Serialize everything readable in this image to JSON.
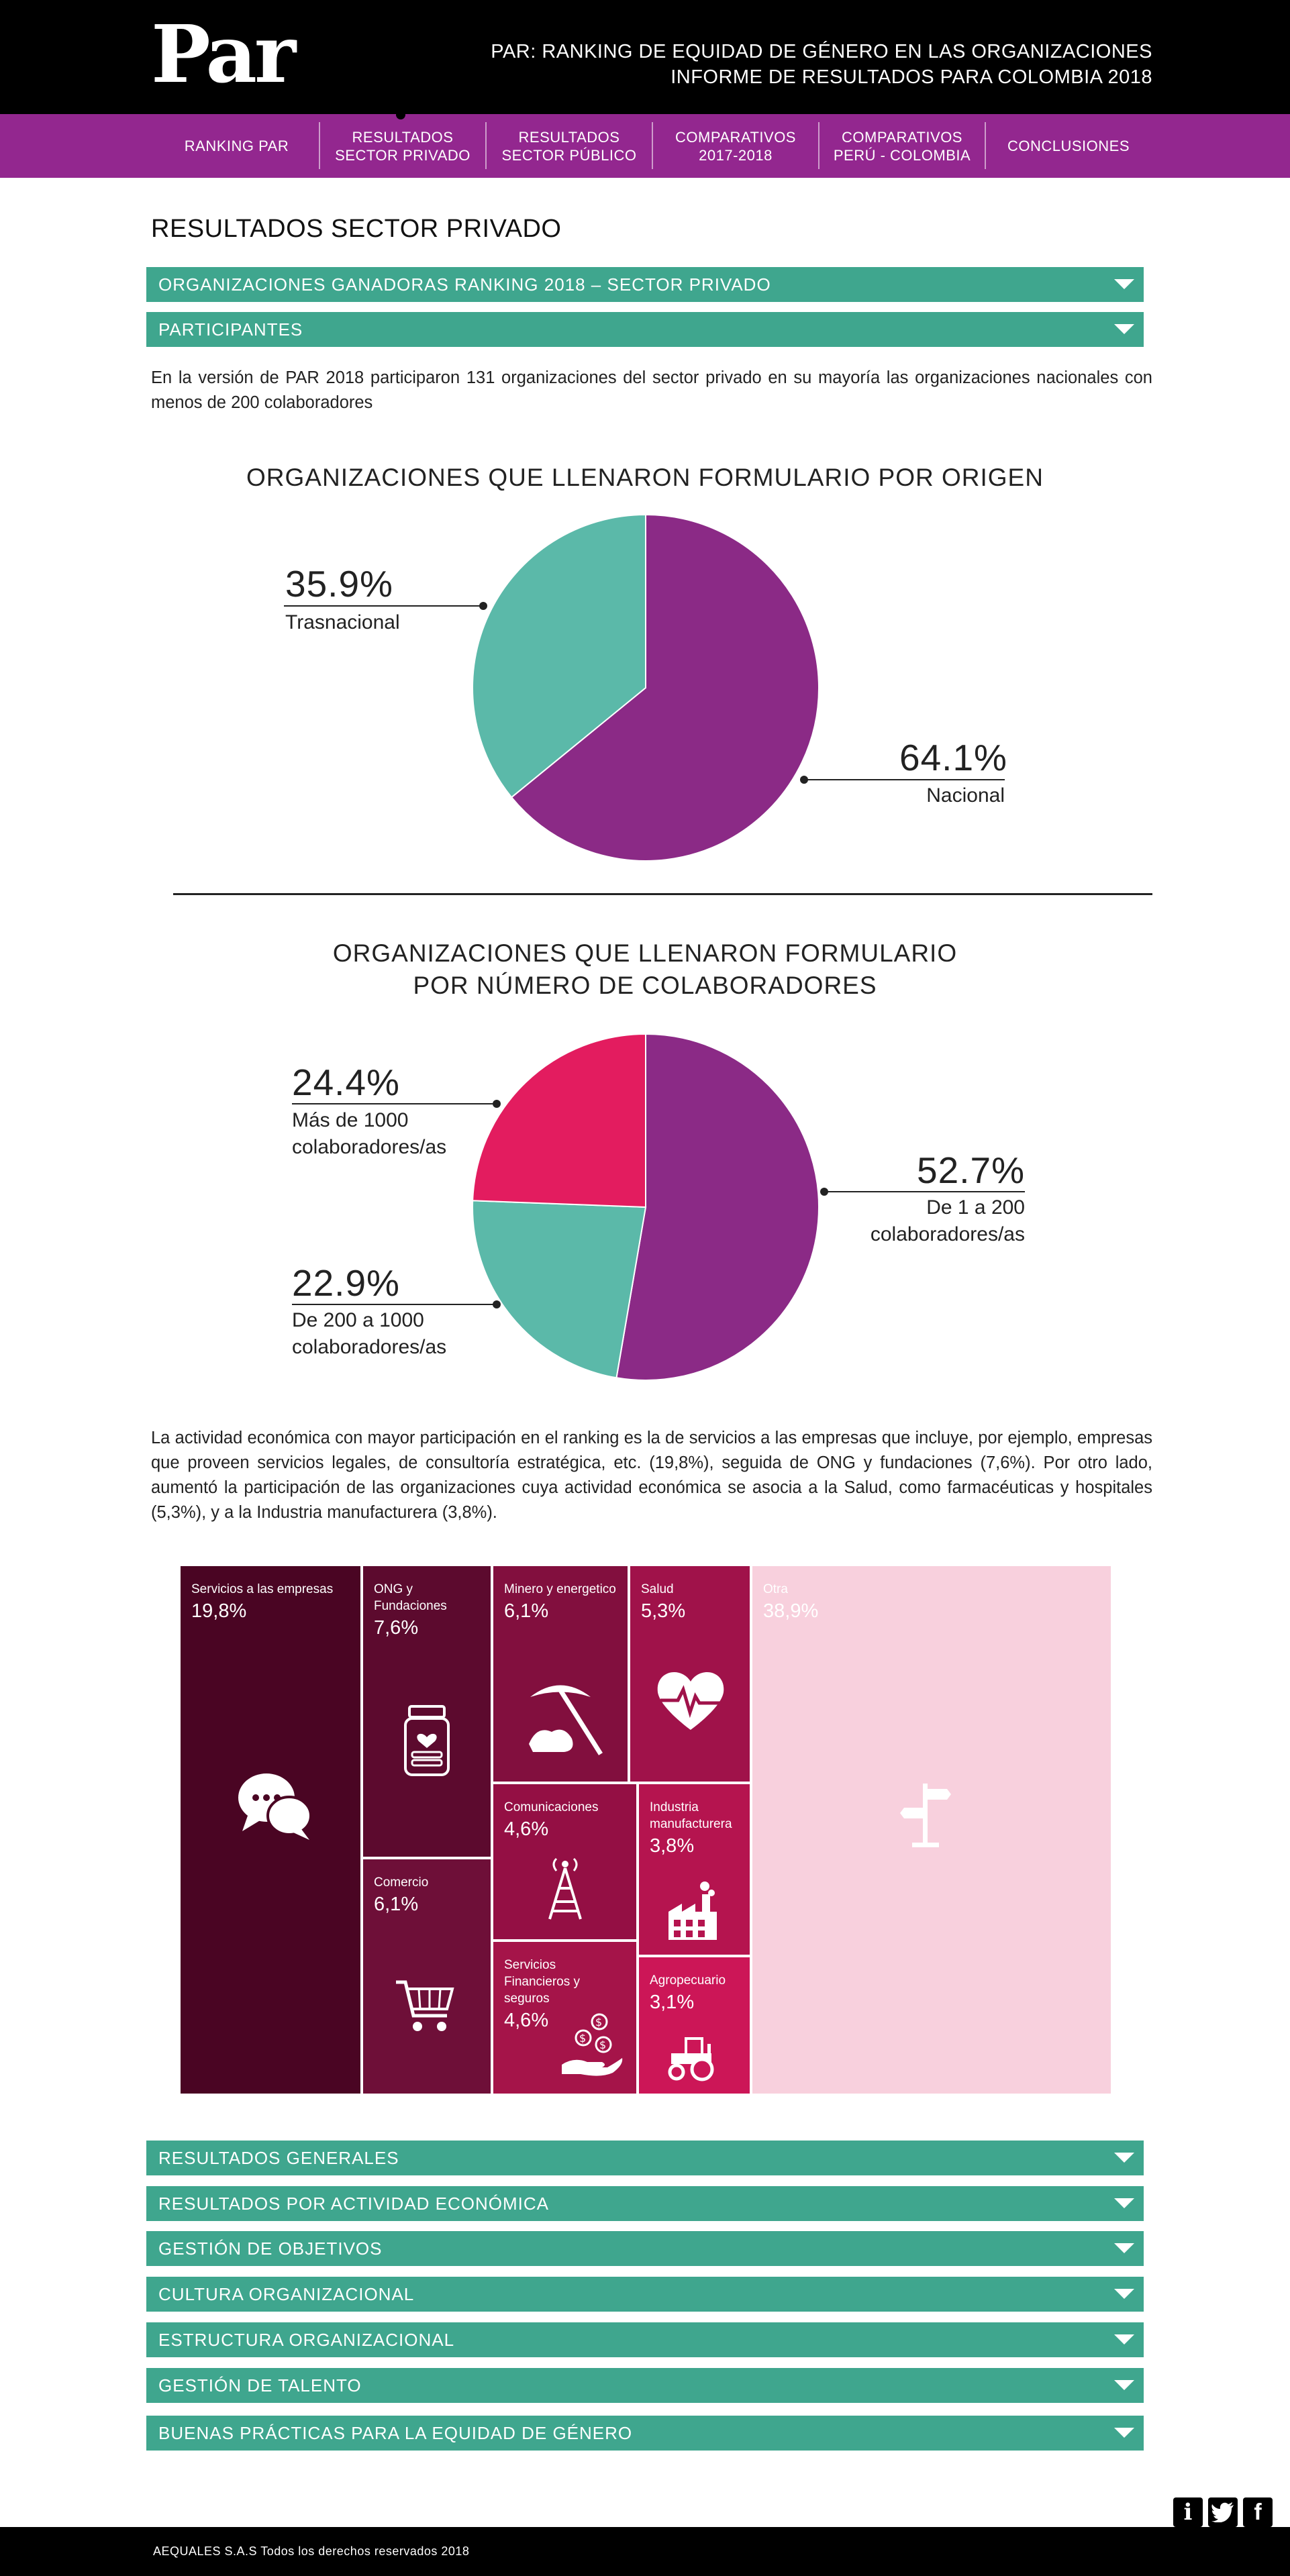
{
  "header": {
    "logo": "Par",
    "title_line1": "PAR: RANKING DE EQUIDAD DE GÉNERO EN LAS ORGANIZACIONES",
    "title_line2": "INFORME DE RESULTADOS PARA COLOMBIA 2018"
  },
  "nav": {
    "items": [
      {
        "line1": "RANKING PAR",
        "line2": ""
      },
      {
        "line1": "RESULTADOS",
        "line2": "SECTOR PRIVADO"
      },
      {
        "line1": "RESULTADOS",
        "line2": "SECTOR PÚBLICO"
      },
      {
        "line1": "COMPARATIVOS",
        "line2": "2017-2018"
      },
      {
        "line1": "COMPARATIVOS",
        "line2": "PERÚ - COLOMBIA"
      },
      {
        "line1": "CONCLUSIONES",
        "line2": ""
      }
    ],
    "active_index": 1
  },
  "page_title": "RESULTADOS SECTOR PRIVADO",
  "accordion_top": [
    "ORGANIZACIONES GANADORAS RANKING 2018 – SECTOR PRIVADO",
    "PARTICIPANTES"
  ],
  "intro_text": "En la versión de PAR 2018 participaron 131 organizaciones del sector privado en su mayoría las organizaciones nacionales con menos de 200 colaboradores",
  "chart1": {
    "title": "ORGANIZACIONES QUE LLENARON FORMULARIO POR ORIGEN",
    "slices": [
      {
        "pct": "64.1%",
        "label": "Nacional",
        "color": "#8b2a86"
      },
      {
        "pct": "35.9%",
        "label": "Trasnacional",
        "color": "#5bb9a9"
      }
    ]
  },
  "chart2": {
    "title_line1": "ORGANIZACIONES QUE LLENARON FORMULARIO",
    "title_line2": "POR NÚMERO DE COLABORADORES",
    "slices": [
      {
        "pct": "52.7%",
        "label1": "De 1 a 200",
        "label2": "colaboradores/as",
        "color": "#8b2a86"
      },
      {
        "pct": "22.9%",
        "label1": "De 200 a 1000",
        "label2": "colaboradores/as",
        "color": "#5bb9a9"
      },
      {
        "pct": "24.4%",
        "label1": "Más de 1000",
        "label2": "colaboradores/as",
        "color": "#e31c5f"
      }
    ]
  },
  "activity_text": "La actividad económica con mayor participación en el ranking es la de servicios a las empresas que incluye, por ejemplo, empresas que proveen servicios legales, de consultoría estratégica, etc. (19,8%), seguida de ONG y fundaciones (7,6%). Por otro lado, aumentó la participación de las organizaciones cuya actividad económica se asocia a la Salud, como farmacéuticas y hospitales (5,3%), y a la Industria manufacturera (3,8%).",
  "chart_data": [
    {
      "type": "pie",
      "title": "ORGANIZACIONES QUE LLENARON FORMULARIO POR ORIGEN",
      "categories": [
        "Nacional",
        "Trasnacional"
      ],
      "values": [
        64.1,
        35.9
      ],
      "colors": [
        "#8b2a86",
        "#5bb9a9"
      ]
    },
    {
      "type": "pie",
      "title": "ORGANIZACIONES QUE LLENARON FORMULARIO POR NÚMERO DE COLABORADORES",
      "categories": [
        "De 1 a 200 colaboradores/as",
        "De 200 a 1000 colaboradores/as",
        "Más de 1000 colaboradores/as"
      ],
      "values": [
        52.7,
        22.9,
        24.4
      ],
      "colors": [
        "#8b2a86",
        "#5bb9a9",
        "#e31c5f"
      ]
    },
    {
      "type": "treemap",
      "title": "",
      "categories": [
        "Servicios a las empresas",
        "ONG y Fundaciones",
        "Comercio",
        "Minero y energetico",
        "Salud",
        "Comunicaciones",
        "Industria manufacturera",
        "Servicios Financieros y seguros",
        "Agropecuario",
        "Otra"
      ],
      "values": [
        19.8,
        7.6,
        6.1,
        6.1,
        5.3,
        4.6,
        3.8,
        4.6,
        3.1,
        38.9
      ]
    }
  ],
  "treemap": {
    "cells": [
      {
        "name": "Servicios a las empresas",
        "value": "19,8%",
        "icon": "chat-bubbles-icon",
        "color": "#4a0523"
      },
      {
        "name": "ONG y Fundaciones",
        "value": "7,6%",
        "icon": "jar-heart-icon",
        "color": "#5c0a2e"
      },
      {
        "name": "Comercio",
        "value": "6,1%",
        "icon": "shopping-cart-icon",
        "color": "#6e0f38"
      },
      {
        "name": "Minero y energetico",
        "value": "6,1%",
        "icon": "pickaxe-icon",
        "color": "#820f3e"
      },
      {
        "name": "Salud",
        "value": "5,3%",
        "icon": "heart-pulse-icon",
        "color": "#a0124a"
      },
      {
        "name": "Comunicaciones",
        "value": "4,6%",
        "icon": "antenna-tower-icon",
        "color": "#940f44"
      },
      {
        "name": "Industria manufacturera",
        "value": "3,8%",
        "icon": "factory-icon",
        "color": "#b5144f"
      },
      {
        "name": "Servicios Financieros y seguros",
        "value": "4,6%",
        "icon": "coins-hand-icon",
        "color": "#a51449"
      },
      {
        "name": "Agropecuario",
        "value": "3,1%",
        "icon": "tractor-icon",
        "color": "#cc1657"
      },
      {
        "name": "Otra",
        "value": "38,9%",
        "icon": "signpost-icon",
        "color": "#f8d0dd"
      }
    ]
  },
  "accordion_bottom": [
    "RESULTADOS GENERALES",
    "RESULTADOS POR ACTIVIDAD ECONÓMICA",
    "GESTIÓN DE OBJETIVOS",
    "CULTURA ORGANIZACIONAL",
    "ESTRUCTURA ORGANIZACIONAL",
    "GESTIÓN DE TALENTO",
    "BUENAS PRÁCTICAS PARA LA EQUIDAD DE GÉNERO"
  ],
  "social": {
    "icons": [
      "info-icon",
      "twitter-icon",
      "facebook-icon"
    ],
    "glyphs": [
      "i",
      "t",
      "f"
    ]
  },
  "footer": {
    "text": "AEQUALES  S.A.S Todos los derechos reservados 2018"
  }
}
